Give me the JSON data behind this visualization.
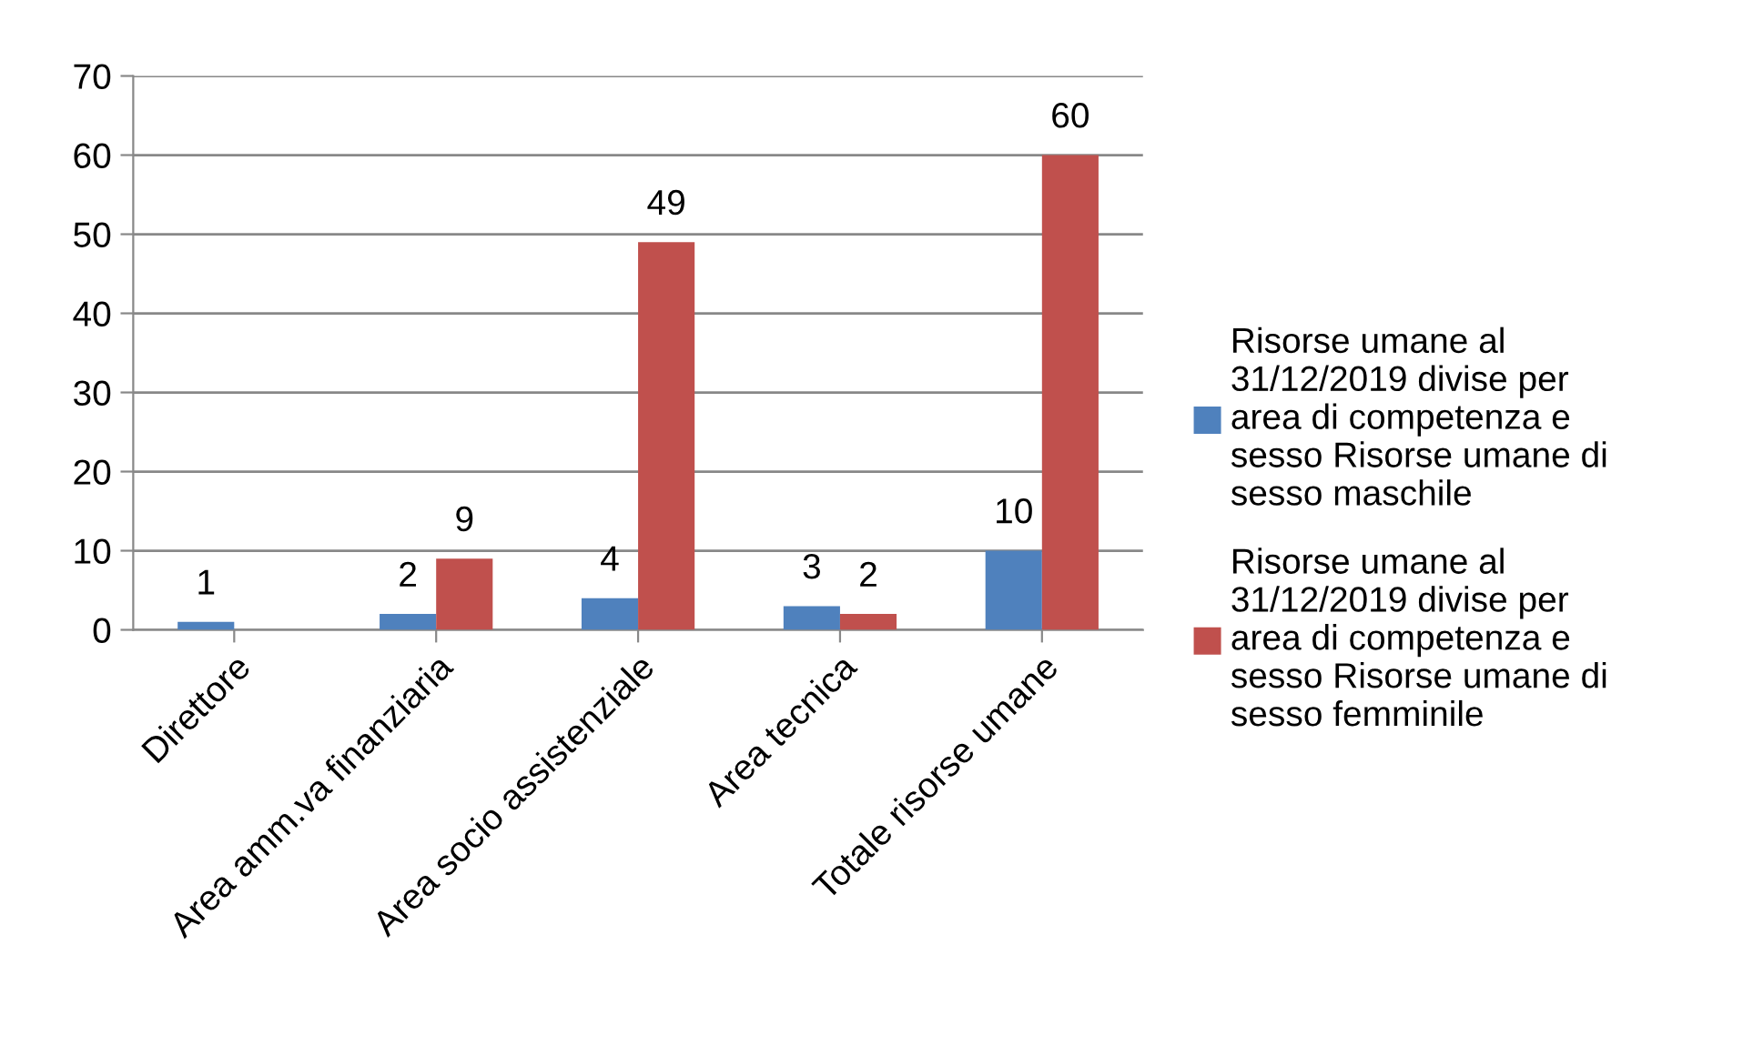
{
  "chart_data": {
    "type": "bar",
    "categories": [
      "Direttore",
      "Area amm.va finanziaria",
      "Area socio assistenziale",
      "Area tecnica",
      "Totale risorse umane"
    ],
    "series": [
      {
        "name": "Risorse umane al\n31/12/2019 divise per\narea di competenza e\nsesso Risorse umane di\nsesso maschile",
        "color": "#4f81bd",
        "values": [
          1,
          2,
          4,
          3,
          10
        ],
        "value_labels": [
          "1",
          "2",
          "4",
          "3",
          "10"
        ]
      },
      {
        "name": "Risorse umane al\n31/12/2019 divise per\narea di competenza e\nsesso Risorse umane di\nsesso femminile",
        "color": "#c0504d",
        "values": [
          null,
          9,
          49,
          2,
          60
        ],
        "value_labels": [
          null,
          "9",
          "49",
          "2",
          "60"
        ]
      }
    ],
    "ylim": [
      0,
      70
    ],
    "yticks": [
      0,
      10,
      20,
      30,
      40,
      50,
      60,
      70
    ],
    "grid": "y",
    "legend": "right"
  }
}
